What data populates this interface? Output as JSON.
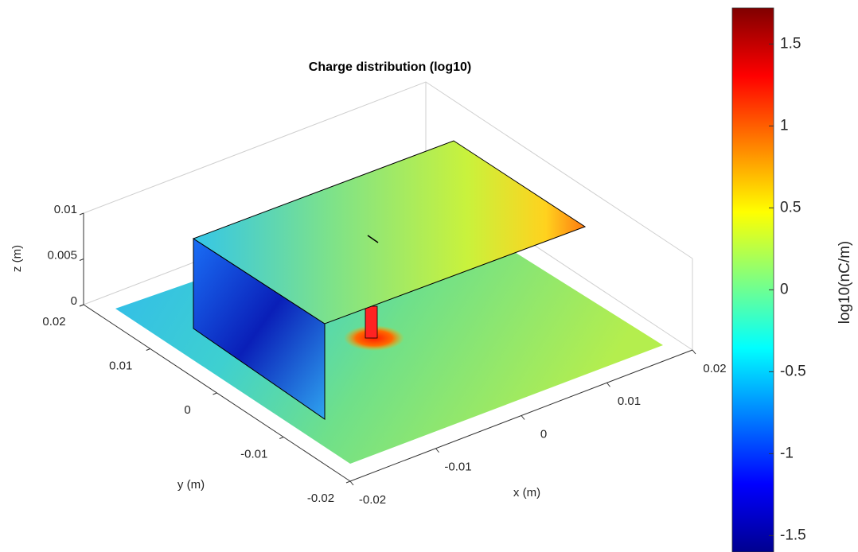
{
  "chart_data": {
    "type": "surface3d",
    "title": "Charge distribution (log10)",
    "xlabel": "x (m)",
    "ylabel": "y (m)",
    "zlabel": "z (m)",
    "xlim": [
      -0.02,
      0.02
    ],
    "xticks": [
      -0.02,
      -0.01,
      0,
      0.01,
      0.02
    ],
    "ylim": [
      -0.02,
      0.02
    ],
    "yticks": [
      -0.02,
      -0.01,
      0,
      0.01,
      0.02
    ],
    "zlim": [
      0,
      0.01
    ],
    "zticks": [
      0,
      0.005,
      0.01
    ],
    "colorbar": {
      "label": "log10(nC/m)",
      "clim": [
        -1.6,
        1.72
      ],
      "ticks": [
        -1.5,
        -1,
        -0.5,
        0,
        0.5,
        1,
        1.5
      ],
      "colormap": "jet"
    }
  }
}
